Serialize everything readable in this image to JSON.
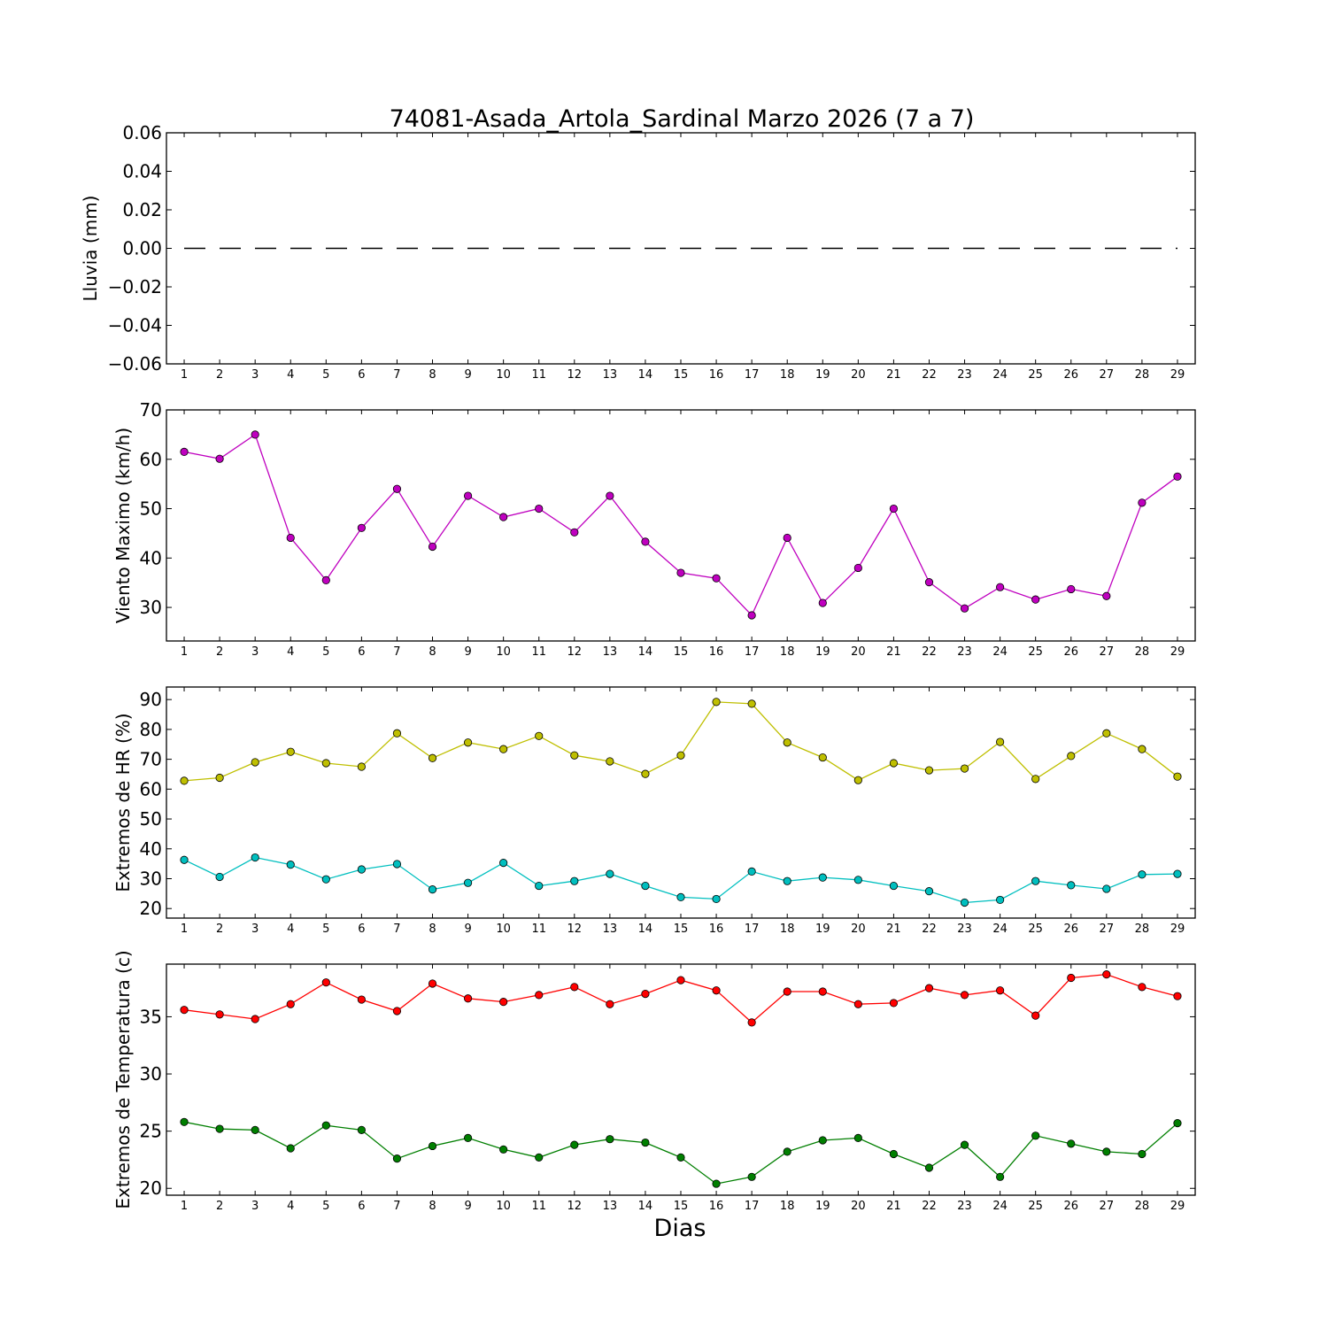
{
  "chart_data": {
    "title": "74081-Asada_Artola_Sardinal Marzo 2026  (7 a 7)",
    "xlabel": "Dias",
    "x": [
      1,
      2,
      3,
      4,
      5,
      6,
      7,
      8,
      9,
      10,
      11,
      12,
      13,
      14,
      15,
      16,
      17,
      18,
      19,
      20,
      21,
      22,
      23,
      24,
      25,
      26,
      27,
      28,
      29
    ],
    "panels": [
      {
        "type": "line",
        "ylabel": "Lluvia (mm)",
        "ylim": [
          -0.06,
          0.06
        ],
        "yticks": [
          0.06,
          0.04,
          0.02,
          0.0
        ],
        "yticks_neg": [
          -0.02,
          -0.04,
          -0.06
        ],
        "ytick_labels": [
          "0.06",
          "0.04",
          "0.02",
          "0.00",
          "−0.02",
          "−0.04",
          "−0.06"
        ],
        "series": [
          {
            "color": "#000000",
            "style": "dashed",
            "markers": false,
            "values": [
              0,
              0,
              0,
              0,
              0,
              0,
              0,
              0,
              0,
              0,
              0,
              0,
              0,
              0,
              0,
              0,
              0,
              0,
              0,
              0,
              0,
              0,
              0,
              0,
              0,
              0,
              0,
              0,
              0
            ]
          }
        ]
      },
      {
        "type": "line",
        "ylabel": "Viento Maximo (km/h)",
        "ylim": [
          23.2,
          70
        ],
        "ytick_labels": [
          "30",
          "40",
          "50",
          "60",
          "70"
        ],
        "series": [
          {
            "color": "#bf00bf",
            "style": "solid",
            "markers": true,
            "values": [
              61.5,
              60.1,
              65.0,
              44.1,
              35.5,
              46.1,
              54.0,
              42.3,
              52.6,
              48.3,
              50.0,
              45.2,
              52.6,
              43.3,
              37.0,
              35.9,
              28.4,
              44.1,
              30.9,
              38.0,
              50.0,
              35.1,
              29.8,
              34.1,
              31.6,
              33.7,
              32.3,
              51.2,
              56.5
            ]
          }
        ]
      },
      {
        "type": "line",
        "ylabel": "Extremos de HR (%)",
        "ylim": [
          16.8,
          94.2
        ],
        "ytick_labels": [
          "20",
          "30",
          "40",
          "50",
          "60",
          "70",
          "80",
          "90"
        ],
        "series": [
          {
            "color": "#bfbf00",
            "style": "solid",
            "markers": true,
            "values": [
              62.8,
              63.8,
              69.0,
              72.5,
              68.7,
              67.5,
              78.7,
              70.4,
              75.6,
              73.4,
              77.8,
              71.3,
              69.3,
              65.1,
              71.3,
              89.2,
              88.6,
              75.6,
              70.6,
              63.0,
              68.7,
              66.3,
              66.9,
              75.8,
              63.4,
              71.1,
              78.7,
              73.4,
              64.2
            ]
          },
          {
            "color": "#00bfbf",
            "style": "solid",
            "markers": true,
            "values": [
              36.3,
              30.6,
              37.1,
              34.7,
              29.8,
              33.1,
              34.9,
              26.4,
              28.6,
              35.3,
              27.6,
              29.2,
              31.6,
              27.6,
              23.8,
              23.2,
              32.4,
              29.2,
              30.4,
              29.6,
              27.6,
              25.8,
              22.0,
              22.9,
              29.2,
              27.8,
              26.6,
              31.4,
              31.6
            ]
          }
        ]
      },
      {
        "type": "line",
        "ylabel": "Extremos de Temperatura (c)",
        "ylim": [
          19.4,
          39.6
        ],
        "ytick_labels": [
          "20",
          "25",
          "30",
          "35"
        ],
        "series": [
          {
            "color": "#ff0000",
            "style": "solid",
            "markers": true,
            "values": [
              35.6,
              35.2,
              34.8,
              36.1,
              38.0,
              36.5,
              35.5,
              37.9,
              36.6,
              36.3,
              36.9,
              37.6,
              36.1,
              37.0,
              38.2,
              37.3,
              34.5,
              37.2,
              37.2,
              36.1,
              36.2,
              37.5,
              36.9,
              37.3,
              35.1,
              38.4,
              38.7,
              37.6,
              36.8
            ]
          },
          {
            "color": "#007f00",
            "style": "solid",
            "markers": true,
            "values": [
              25.8,
              25.2,
              25.1,
              23.5,
              25.5,
              25.1,
              22.6,
              23.7,
              24.4,
              23.4,
              22.7,
              23.8,
              24.3,
              24.0,
              22.7,
              20.4,
              21.0,
              23.2,
              24.2,
              24.4,
              23.0,
              21.8,
              23.8,
              21.0,
              24.6,
              23.9,
              23.2,
              23.0,
              25.7
            ]
          }
        ]
      }
    ]
  }
}
